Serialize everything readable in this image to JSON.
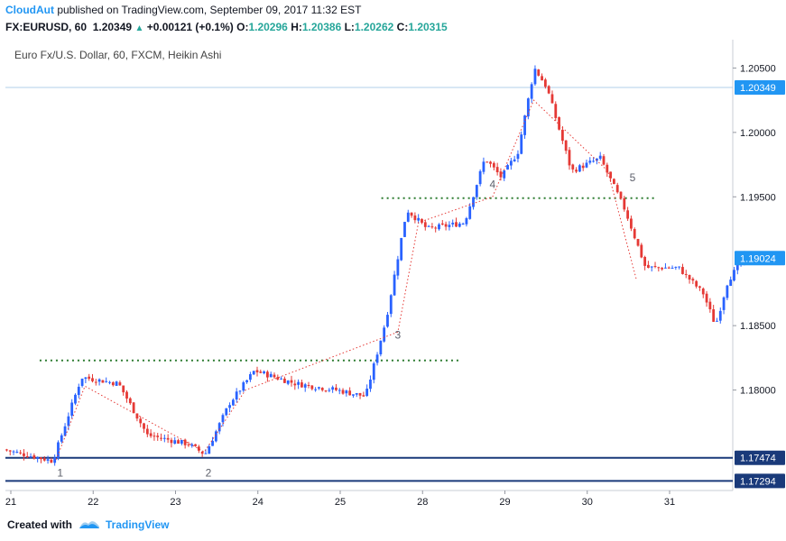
{
  "header": {
    "author": "CloudAut",
    "published_text": "published on TradingView.com, September 09, 2017 11:32 EST",
    "symbol": "FX:EURUSD, 60",
    "price": "1.20349",
    "change": "+0.00121 (+0.1%)",
    "o_label": "O:",
    "o_value": "1.20296",
    "h_label": "H:",
    "h_value": "1.20386",
    "l_label": "L:",
    "l_value": "1.20262",
    "c_label": "C:",
    "c_value": "1.20315"
  },
  "pane_title": "Euro Fx/U.S. Dollar, 60, FXCM, Heikin Ashi",
  "footer": {
    "created_with": "Created with",
    "brand": "TradingView"
  },
  "colors": {
    "up": "#2962ff",
    "down": "#e53935",
    "support": "#1a3a7a",
    "resistance": "#2e7d32",
    "price_tag": "#2196f3",
    "support_tag": "#1a3a7a"
  },
  "chart_data": {
    "type": "candlestick",
    "title": "Euro Fx/U.S. Dollar, 60, FXCM, Heikin Ashi",
    "x_ticks": [
      "21",
      "22",
      "23",
      "24",
      "25",
      "28",
      "29",
      "30",
      "31"
    ],
    "y_ticks": [
      "1.20500",
      "1.20000",
      "1.19500",
      "1.18500",
      "1.18000"
    ],
    "ylim": [
      1.1722,
      1.2072
    ],
    "price_tags": [
      {
        "label": "1.20349",
        "value": 1.20349,
        "color": "#2196f3"
      },
      {
        "label": "1.19024",
        "value": 1.19024,
        "color": "#2196f3"
      },
      {
        "label": "1.17474",
        "value": 1.17474,
        "color": "#1a3a7a"
      },
      {
        "label": "1.17294",
        "value": 1.17294,
        "color": "#1a3a7a"
      }
    ],
    "horizontal_lines": [
      {
        "value": 1.20349,
        "style": "thin",
        "color": "#b2cfe8",
        "from_x": 0,
        "to_x": 8.95
      },
      {
        "value": 1.17474,
        "style": "solid",
        "color": "#1a3a7a",
        "from_x": 0,
        "to_x": 8.95
      },
      {
        "value": 1.17294,
        "style": "solid",
        "color": "#1a3a7a",
        "from_x": 0,
        "to_x": 8.95
      }
    ],
    "dotted_levels": [
      {
        "value": 1.1823,
        "from_x": 0.35,
        "to_x": 5.45,
        "color": "#2e7d32"
      },
      {
        "value": 1.1949,
        "from_x": 4.5,
        "to_x": 7.85,
        "color": "#2e7d32"
      }
    ],
    "anchors": [
      {
        "x": -0.2,
        "y": 1.1756
      },
      {
        "x": 0.55,
        "y": 1.1745
      },
      {
        "x": 0.9,
        "y": 1.181
      },
      {
        "x": 1.35,
        "y": 1.1805
      },
      {
        "x": 1.7,
        "y": 1.1765
      },
      {
        "x": 2.2,
        "y": 1.1758
      },
      {
        "x": 2.4,
        "y": 1.175
      },
      {
        "x": 2.7,
        "y": 1.179
      },
      {
        "x": 3.0,
        "y": 1.1815
      },
      {
        "x": 3.5,
        "y": 1.1805
      },
      {
        "x": 4.0,
        "y": 1.18
      },
      {
        "x": 4.35,
        "y": 1.1795
      },
      {
        "x": 4.6,
        "y": 1.1855
      },
      {
        "x": 4.85,
        "y": 1.194
      },
      {
        "x": 5.1,
        "y": 1.1925
      },
      {
        "x": 5.55,
        "y": 1.193
      },
      {
        "x": 5.8,
        "y": 1.198
      },
      {
        "x": 6.0,
        "y": 1.1965
      },
      {
        "x": 6.2,
        "y": 1.1985
      },
      {
        "x": 6.4,
        "y": 1.205
      },
      {
        "x": 6.55,
        "y": 1.2035
      },
      {
        "x": 6.85,
        "y": 1.197
      },
      {
        "x": 7.2,
        "y": 1.198
      },
      {
        "x": 7.5,
        "y": 1.194
      },
      {
        "x": 7.75,
        "y": 1.1895
      },
      {
        "x": 8.15,
        "y": 1.1895
      },
      {
        "x": 8.45,
        "y": 1.1875
      },
      {
        "x": 8.6,
        "y": 1.185
      },
      {
        "x": 8.75,
        "y": 1.1885
      },
      {
        "x": 8.95,
        "y": 1.19024
      }
    ],
    "wave_labels": [
      {
        "label": "1",
        "x": 0.6,
        "y": 1.1733
      },
      {
        "label": "2",
        "x": 2.4,
        "y": 1.1733
      },
      {
        "label": "3",
        "x": 4.7,
        "y": 1.184
      },
      {
        "label": "4",
        "x": 5.85,
        "y": 1.1957
      },
      {
        "label": "5",
        "x": 7.55,
        "y": 1.1962
      }
    ],
    "projection_path": [
      {
        "x": 0.55,
        "y": 1.1746
      },
      {
        "x": 0.9,
        "y": 1.1803
      },
      {
        "x": 2.35,
        "y": 1.1752
      },
      {
        "x": 2.85,
        "y": 1.18
      },
      {
        "x": 4.7,
        "y": 1.1845
      },
      {
        "x": 4.95,
        "y": 1.193
      },
      {
        "x": 5.85,
        "y": 1.195
      },
      {
        "x": 6.35,
        "y": 1.2025
      },
      {
        "x": 7.25,
        "y": 1.197
      },
      {
        "x": 7.6,
        "y": 1.1885
      }
    ]
  }
}
